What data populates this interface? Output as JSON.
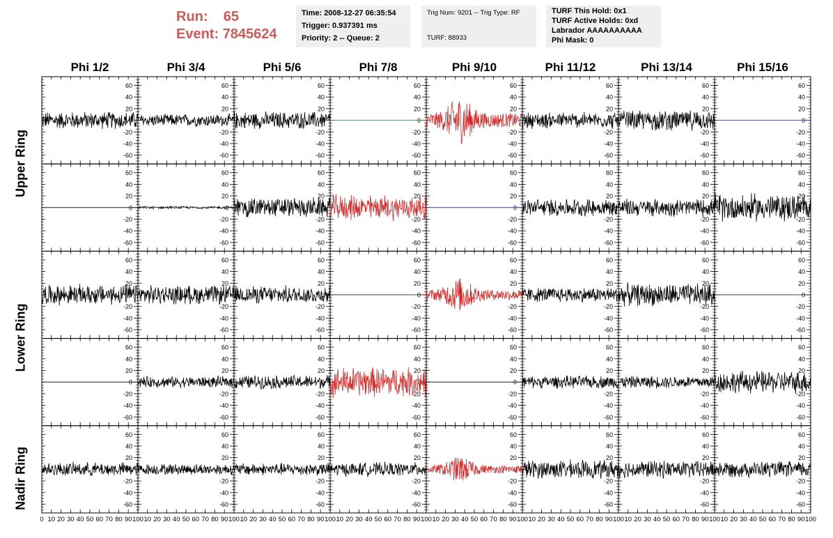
{
  "header": {
    "run_label": "Run:",
    "run_value": "65",
    "event_label": "Event:",
    "event_value": "7845624"
  },
  "info_time": {
    "time": "Time: 2008-12-27 06:35:54",
    "trigger": "Trigger: 0.937391 ms",
    "priority": "Priority: 2 -- Queue: 2"
  },
  "info_trig": {
    "trig": "Trig Num: 9201 -- Trig Type: RF",
    "turf": "TURF: 88933"
  },
  "info_turf": {
    "this_hold": "TURF This Hold: 0x1",
    "active_holds": "TURF Active Holds: 0xd",
    "labrador": "Labrador AAAAAAAAAA",
    "phi_mask": "Phi Mask: 0"
  },
  "columns": [
    "Phi 1/2",
    "Phi 3/4",
    "Phi 5/6",
    "Phi 7/8",
    "Phi 9/10",
    "Phi 11/12",
    "Phi 13/14",
    "Phi 15/16"
  ],
  "rows": [
    "Upper Ring",
    "Lower Ring",
    "Nadir Ring"
  ],
  "colors": {
    "trace_normal": "#000000",
    "trace_triggered": "#d62a2a",
    "trace_flat_green": "#1a8a1a",
    "trace_flat_blue": "#1a1aa6",
    "run_text": "#cf5b57",
    "info_bg": "#efefef"
  },
  "chart_data": {
    "type": "line",
    "xlim": [
      0,
      100
    ],
    "ylim": [
      -75,
      75
    ],
    "y_ticks": [
      -60,
      -40,
      -20,
      0,
      20,
      40,
      60
    ],
    "x_ticks": [
      0,
      10,
      20,
      30,
      40,
      50,
      60,
      70,
      80,
      90,
      100
    ],
    "x_tick_labels_bottom": "0 10 20 30 40 50 60 70 80 90 100",
    "panels": [
      [
        {
          "style": "noise",
          "amp": 14,
          "color": "normal"
        },
        {
          "style": "noise",
          "amp": 10,
          "color": "normal"
        },
        {
          "style": "noise",
          "amp": 14,
          "color": "normal"
        },
        {
          "style": "flat",
          "amp": 0,
          "color": "flat_green"
        },
        {
          "style": "burst",
          "amp": 22,
          "color": "triggered"
        },
        {
          "style": "noise",
          "amp": 13,
          "color": "normal"
        },
        {
          "style": "noise",
          "amp": 16,
          "color": "normal"
        },
        {
          "style": "flat",
          "amp": 0,
          "color": "flat_blue"
        }
      ],
      [
        {
          "style": "flat",
          "amp": 0,
          "color": "normal"
        },
        {
          "style": "noise",
          "amp": 2,
          "color": "normal"
        },
        {
          "style": "noise",
          "amp": 16,
          "color": "normal"
        },
        {
          "style": "noise",
          "amp": 20,
          "color": "triggered"
        },
        {
          "style": "flat",
          "amp": 0,
          "color": "flat_blue"
        },
        {
          "style": "noise",
          "amp": 14,
          "color": "normal"
        },
        {
          "style": "noise",
          "amp": 14,
          "color": "normal"
        },
        {
          "style": "noise",
          "amp": 22,
          "color": "normal"
        }
      ],
      [
        {
          "style": "noise",
          "amp": 16,
          "color": "normal"
        },
        {
          "style": "noise",
          "amp": 15,
          "color": "normal"
        },
        {
          "style": "noise",
          "amp": 14,
          "color": "normal"
        },
        {
          "style": "flat",
          "amp": 0,
          "color": "normal"
        },
        {
          "style": "burst",
          "amp": 16,
          "color": "triggered"
        },
        {
          "style": "noise",
          "amp": 12,
          "color": "normal"
        },
        {
          "style": "noise",
          "amp": 18,
          "color": "normal"
        },
        {
          "style": "flat",
          "amp": 0,
          "color": "normal"
        }
      ],
      [
        {
          "style": "flat",
          "amp": 0,
          "color": "normal"
        },
        {
          "style": "noise",
          "amp": 9,
          "color": "normal"
        },
        {
          "style": "noise",
          "amp": 11,
          "color": "normal"
        },
        {
          "style": "noise",
          "amp": 24,
          "color": "triggered"
        },
        {
          "style": "flat",
          "amp": 0,
          "color": "normal"
        },
        {
          "style": "noise",
          "amp": 10,
          "color": "normal"
        },
        {
          "style": "noise",
          "amp": 10,
          "color": "normal"
        },
        {
          "style": "noise",
          "amp": 18,
          "color": "normal"
        }
      ],
      [
        {
          "style": "noise",
          "amp": 11,
          "color": "normal"
        },
        {
          "style": "noise",
          "amp": 9,
          "color": "normal"
        },
        {
          "style": "noise",
          "amp": 10,
          "color": "normal"
        },
        {
          "style": "noise",
          "amp": 11,
          "color": "normal"
        },
        {
          "style": "burst",
          "amp": 12,
          "color": "triggered"
        },
        {
          "style": "noise",
          "amp": 15,
          "color": "normal"
        },
        {
          "style": "noise",
          "amp": 14,
          "color": "normal"
        },
        {
          "style": "noise",
          "amp": 13,
          "color": "normal"
        }
      ]
    ]
  }
}
